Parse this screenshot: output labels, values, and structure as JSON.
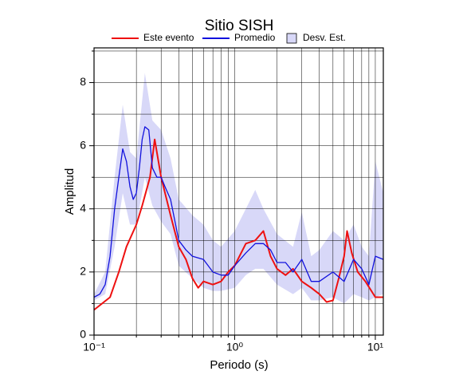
{
  "chart_data": {
    "type": "line",
    "title": "Sitio SISH",
    "xlabel": "Periodo (s)",
    "ylabel": "Amplitud",
    "xscale": "log",
    "xlim": [
      0.1,
      11.4
    ],
    "ylim": [
      0,
      9.1
    ],
    "xticks": [
      {
        "value": 0.1,
        "label": "10⁻¹"
      },
      {
        "value": 1,
        "label": "10⁰"
      },
      {
        "value": 10,
        "label": "10¹"
      }
    ],
    "x_minor_ticks": [
      0.2,
      0.3,
      0.4,
      0.5,
      0.6,
      0.7,
      0.8,
      0.9,
      2,
      3,
      4,
      5,
      6,
      7,
      8,
      9
    ],
    "yticks": [
      0,
      2,
      4,
      6,
      8
    ],
    "y_minor_ticks": [
      1,
      3,
      5,
      7,
      9
    ],
    "grid": true,
    "legend": "top",
    "series": [
      {
        "name": "Este evento",
        "color": "#ee1111",
        "kind": "line",
        "x": [
          0.1,
          0.13,
          0.15,
          0.17,
          0.2,
          0.22,
          0.25,
          0.27,
          0.3,
          0.35,
          0.4,
          0.45,
          0.5,
          0.55,
          0.6,
          0.7,
          0.8,
          0.9,
          1,
          1.2,
          1.4,
          1.6,
          1.8,
          2,
          2.3,
          2.6,
          3,
          3.5,
          4,
          4.5,
          5,
          5.5,
          6,
          6.3,
          6.8,
          7.5,
          8.5,
          10,
          11.4
        ],
        "values": [
          0.8,
          1.2,
          2,
          2.8,
          3.5,
          4.1,
          5,
          6.2,
          5,
          3.8,
          2.8,
          2.4,
          1.8,
          1.5,
          1.7,
          1.6,
          1.7,
          2,
          2.2,
          2.9,
          3,
          3.3,
          2.5,
          2.1,
          1.9,
          2.1,
          1.7,
          1.5,
          1.3,
          1.05,
          1.1,
          1.8,
          2.5,
          3.3,
          2.6,
          2,
          1.7,
          1.2,
          1.2
        ]
      },
      {
        "name": "Promedio",
        "color": "#1111dd",
        "kind": "line",
        "x": [
          0.1,
          0.11,
          0.12,
          0.13,
          0.14,
          0.15,
          0.16,
          0.17,
          0.18,
          0.19,
          0.2,
          0.21,
          0.22,
          0.23,
          0.245,
          0.26,
          0.28,
          0.3,
          0.32,
          0.35,
          0.4,
          0.45,
          0.5,
          0.6,
          0.7,
          0.8,
          0.9,
          1,
          1.2,
          1.4,
          1.6,
          1.8,
          2,
          2.3,
          2.6,
          3,
          3.5,
          4,
          5,
          6,
          7,
          8,
          9,
          10,
          11.4
        ],
        "values": [
          1.2,
          1.3,
          1.6,
          2.5,
          4,
          5,
          5.9,
          5.5,
          4.7,
          4.3,
          4.5,
          5.3,
          6.2,
          6.6,
          6.5,
          5.3,
          5,
          5,
          4.7,
          4.3,
          3,
          2.7,
          2.5,
          2.4,
          2,
          1.9,
          1.9,
          2.2,
          2.6,
          2.9,
          2.9,
          2.7,
          2.3,
          2.3,
          2,
          2.4,
          1.7,
          1.7,
          2,
          1.7,
          2.4,
          2.1,
          1.6,
          2.5,
          2.4
        ]
      },
      {
        "name": "Desv. Est.",
        "color": "#d8d8f8",
        "kind": "band",
        "x": [
          0.1,
          0.12,
          0.14,
          0.16,
          0.18,
          0.2,
          0.23,
          0.26,
          0.3,
          0.35,
          0.4,
          0.5,
          0.6,
          0.7,
          0.8,
          1,
          1.2,
          1.4,
          1.6,
          2,
          2.6,
          3,
          3.5,
          4,
          5,
          6,
          7,
          8,
          9,
          10,
          11.4
        ],
        "upper": [
          1.3,
          2,
          5,
          7.3,
          5.8,
          5.6,
          8.3,
          6.8,
          6.5,
          5.6,
          4.3,
          3.8,
          3.5,
          3,
          2.8,
          3.3,
          4,
          4.6,
          4,
          3.2,
          2.8,
          3.9,
          2.5,
          2.7,
          3.3,
          3,
          3.5,
          2.8,
          2.5,
          5.5,
          4.5
        ],
        "lower": [
          1.1,
          1.3,
          2.8,
          4.5,
          3.5,
          3.5,
          5,
          4.1,
          3.6,
          3.2,
          2.2,
          1.8,
          1.5,
          1.4,
          1.4,
          1.5,
          1.9,
          2.1,
          2.1,
          1.6,
          1.3,
          1.5,
          1.1,
          1.1,
          1.2,
          1,
          1.3,
          1.2,
          1.1,
          1.2,
          1.3
        ]
      }
    ]
  }
}
